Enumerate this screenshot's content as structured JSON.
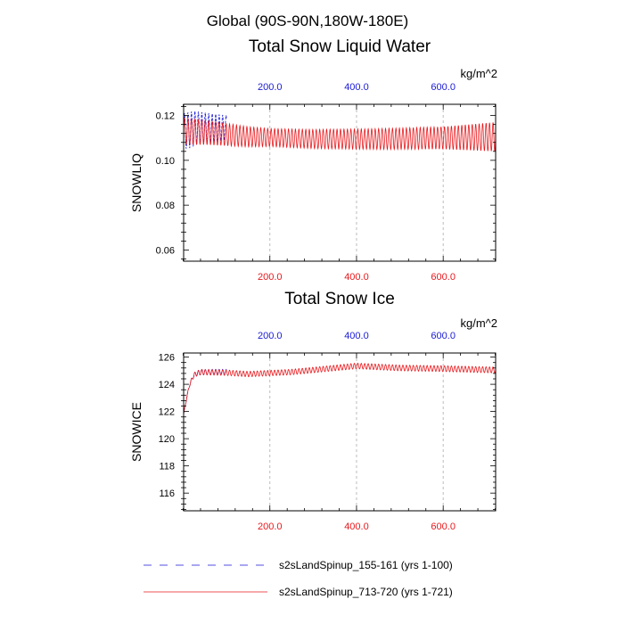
{
  "figure": {
    "title": "Global (90S-90N,180W-180E)",
    "legend": [
      {
        "label": "s2sLandSpinup_155-161 (yrs 1-100)",
        "color": "#1a1ad6",
        "style": "dashed"
      },
      {
        "label": "s2sLandSpinup_713-720 (yrs 1-721)",
        "color": "#e8181c",
        "style": "solid"
      }
    ]
  },
  "chart_data": [
    {
      "type": "line",
      "title": "Total Snow Liquid Water",
      "units": "kg/m^2",
      "ylabel": "SNOWLIQ",
      "xlim": [
        1,
        721
      ],
      "ylim": [
        0.055,
        0.125
      ],
      "yticks": [
        0.06,
        0.08,
        0.1,
        0.12
      ],
      "ytick_labels": [
        "0.06",
        "0.08",
        "0.10",
        "0.12"
      ],
      "xticks": [
        200,
        400,
        600
      ],
      "top_tick_labels": [
        "200.0",
        "400.0",
        "600.0"
      ],
      "bottom_tick_labels": [
        "200.0",
        "400.0",
        "600.0"
      ],
      "top_axis_color": "#1a1ad6",
      "bottom_axis_color": "#e8181c",
      "grid": "vertical dashed at x ticks",
      "series": [
        {
          "name": "s2sLandSpinup_155-161 (yrs 1-100)",
          "color": "#1a1ad6",
          "style": "dashed",
          "x_start": 1,
          "x_end": 100,
          "base": [
            [
              1,
              0.113
            ],
            [
              15,
              0.1135
            ],
            [
              30,
              0.1145
            ],
            [
              60,
              0.1145
            ],
            [
              100,
              0.1145
            ]
          ],
          "amplitude": [
            [
              1,
              0.008
            ],
            [
              20,
              0.008
            ],
            [
              40,
              0.007
            ],
            [
              100,
              0.0055
            ]
          ],
          "period": 8
        },
        {
          "name": "s2sLandSpinup_713-720 (yrs 1-721)",
          "color": "#e8181c",
          "style": "solid",
          "x_start": 1,
          "x_end": 721,
          "base": [
            [
              1,
              0.113
            ],
            [
              50,
              0.1125
            ],
            [
              150,
              0.1105
            ],
            [
              300,
              0.1095
            ],
            [
              450,
              0.1095
            ],
            [
              600,
              0.11
            ],
            [
              721,
              0.1105
            ]
          ],
          "amplitude": [
            [
              1,
              0.006
            ],
            [
              100,
              0.005
            ],
            [
              200,
              0.004
            ],
            [
              400,
              0.0045
            ],
            [
              600,
              0.005
            ],
            [
              721,
              0.0065
            ]
          ],
          "period": 8
        }
      ]
    },
    {
      "type": "line",
      "title": "Total Snow Ice",
      "units": "kg/m^2",
      "ylabel": "SNOWICE",
      "xlim": [
        1,
        721
      ],
      "ylim": [
        114.7,
        126.3
      ],
      "yticks": [
        116,
        118,
        120,
        122,
        124,
        126
      ],
      "ytick_labels": [
        "116",
        "118",
        "120",
        "122",
        "124",
        "126"
      ],
      "xticks": [
        200,
        400,
        600
      ],
      "top_tick_labels": [
        "200.0",
        "400.0",
        "600.0"
      ],
      "bottom_tick_labels": [
        "200.0",
        "400.0",
        "600.0"
      ],
      "top_axis_color": "#1a1ad6",
      "bottom_axis_color": "#e8181c",
      "grid": "vertical dashed at x ticks",
      "series": [
        {
          "name": "s2sLandSpinup_155-161 (yrs 1-100)",
          "color": "#1a1ad6",
          "style": "dashed",
          "x_start": 1,
          "x_end": 100,
          "base": [
            [
              1,
              121.8
            ],
            [
              8,
              123.0
            ],
            [
              15,
              124.0
            ],
            [
              25,
              124.7
            ],
            [
              40,
              124.9
            ],
            [
              100,
              124.9
            ]
          ],
          "amplitude": [
            [
              1,
              0.05
            ],
            [
              20,
              0.15
            ],
            [
              40,
              0.2
            ],
            [
              100,
              0.2
            ]
          ],
          "period": 8
        },
        {
          "name": "s2sLandSpinup_713-720 (yrs 1-721)",
          "color": "#e8181c",
          "style": "solid",
          "x_start": 1,
          "x_end": 721,
          "base": [
            [
              1,
              121.8
            ],
            [
              8,
              123.0
            ],
            [
              15,
              124.0
            ],
            [
              25,
              124.7
            ],
            [
              40,
              124.9
            ],
            [
              100,
              124.85
            ],
            [
              150,
              124.75
            ],
            [
              250,
              124.9
            ],
            [
              350,
              125.2
            ],
            [
              400,
              125.35
            ],
            [
              500,
              125.2
            ],
            [
              600,
              125.15
            ],
            [
              721,
              125.05
            ]
          ],
          "amplitude": [
            [
              1,
              0.05
            ],
            [
              20,
              0.15
            ],
            [
              40,
              0.2
            ],
            [
              200,
              0.2
            ],
            [
              721,
              0.22
            ]
          ],
          "period": 8
        }
      ]
    }
  ]
}
